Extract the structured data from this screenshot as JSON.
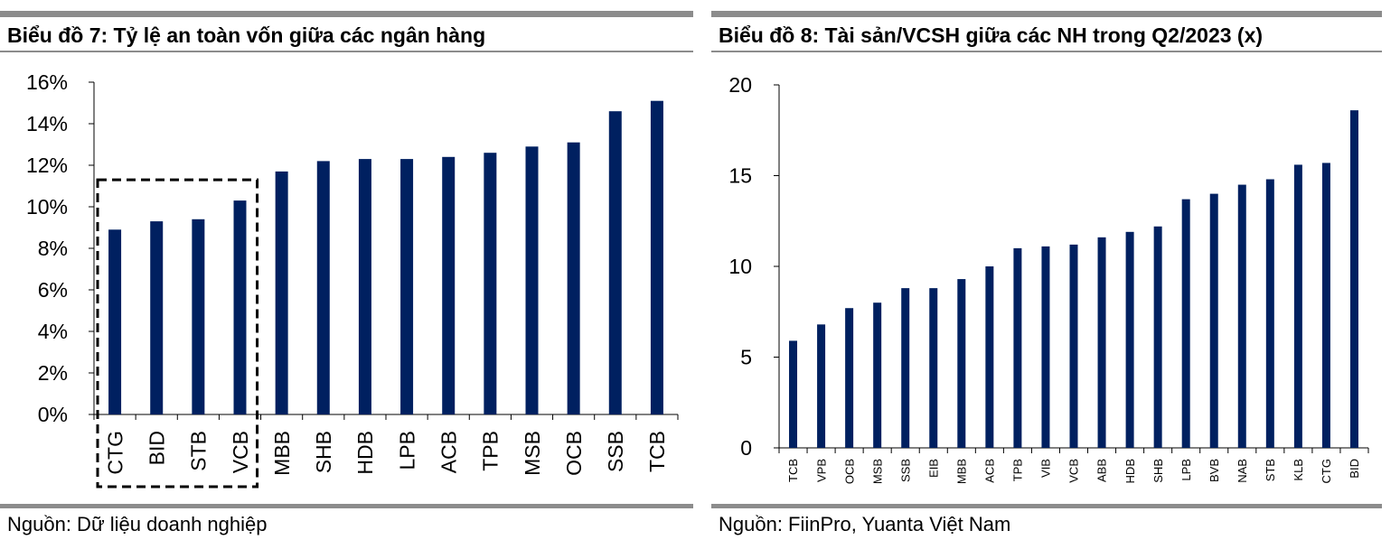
{
  "bar_color": "#002060",
  "chart_data": [
    {
      "type": "bar",
      "title": "Biểu đồ 7: Tỷ lệ an toàn vốn giữa các ngân hàng",
      "source": "Nguồn: Dữ liệu doanh nghiệp",
      "categories": [
        "CTG",
        "BID",
        "STB",
        "VCB",
        "MBB",
        "SHB",
        "HDB",
        "LPB",
        "ACB",
        "TPB",
        "MSB",
        "OCB",
        "SSB",
        "TCB"
      ],
      "values": [
        8.9,
        9.3,
        9.4,
        10.3,
        11.7,
        12.2,
        12.3,
        12.3,
        12.4,
        12.6,
        12.9,
        13.1,
        14.6,
        15.1
      ],
      "ylim": [
        0,
        16
      ],
      "yticks": [
        "0%",
        "2%",
        "4%",
        "6%",
        "8%",
        "10%",
        "12%",
        "14%",
        "16%"
      ],
      "highlighted": [
        "CTG",
        "BID",
        "STB",
        "VCB"
      ]
    },
    {
      "type": "bar",
      "title": "Biểu đồ 8: Tài sản/VCSH giữa các NH trong Q2/2023 (x)",
      "source": "Nguồn: FiinPro, Yuanta Việt Nam",
      "categories": [
        "TCB",
        "VPB",
        "OCB",
        "MSB",
        "SSB",
        "EIB",
        "MBB",
        "ACB",
        "TPB",
        "VIB",
        "VCB",
        "ABB",
        "HDB",
        "SHB",
        "LPB",
        "BVB",
        "NAB",
        "STB",
        "KLB",
        "CTG",
        "BID"
      ],
      "values": [
        5.9,
        6.8,
        7.7,
        8.0,
        8.8,
        8.8,
        9.3,
        10.0,
        11.0,
        11.1,
        11.2,
        11.6,
        11.9,
        12.2,
        13.7,
        14.0,
        14.5,
        14.8,
        15.6,
        15.7,
        18.6
      ],
      "ylim": [
        0,
        20
      ],
      "yticks": [
        "0",
        "5",
        "10",
        "15",
        "20"
      ]
    }
  ]
}
